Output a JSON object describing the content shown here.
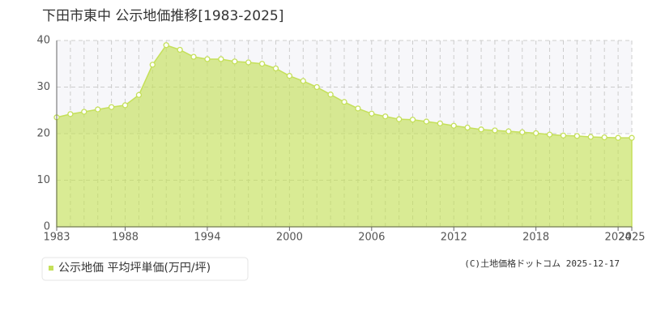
{
  "chart_data": {
    "type": "area",
    "title": "下田市東中 公示地価推移[1983-2025]",
    "x": [
      1983,
      1984,
      1985,
      1986,
      1987,
      1988,
      1989,
      1990,
      1991,
      1992,
      1993,
      1994,
      1995,
      1996,
      1997,
      1998,
      1999,
      2000,
      2001,
      2002,
      2003,
      2004,
      2005,
      2006,
      2007,
      2008,
      2009,
      2010,
      2011,
      2012,
      2013,
      2014,
      2015,
      2016,
      2017,
      2018,
      2019,
      2020,
      2021,
      2022,
      2023,
      2024,
      2025
    ],
    "series": [
      {
        "name": "公示地価 平均坪単価(万円/坪)",
        "color": "#c5e05a",
        "values": [
          23.5,
          24.2,
          24.7,
          25.2,
          25.7,
          26.1,
          28.3,
          34.8,
          39.0,
          38.0,
          36.5,
          36.0,
          36.0,
          35.5,
          35.3,
          35.0,
          34.0,
          32.4,
          31.3,
          30.0,
          28.4,
          26.8,
          25.4,
          24.3,
          23.7,
          23.1,
          23.0,
          22.6,
          22.2,
          21.7,
          21.3,
          20.9,
          20.7,
          20.5,
          20.3,
          20.1,
          19.8,
          19.6,
          19.5,
          19.3,
          19.2,
          19.1,
          19.1
        ]
      }
    ],
    "xlim": [
      1983,
      2025
    ],
    "xticks": [
      1983,
      1988,
      1994,
      2000,
      2006,
      2012,
      2018,
      2024,
      2025
    ],
    "ylim": [
      0,
      40
    ],
    "yticks": [
      0,
      10,
      20,
      30,
      40
    ],
    "grid": true,
    "copyright": "(C)土地価格ドットコム 2025-12-17"
  }
}
